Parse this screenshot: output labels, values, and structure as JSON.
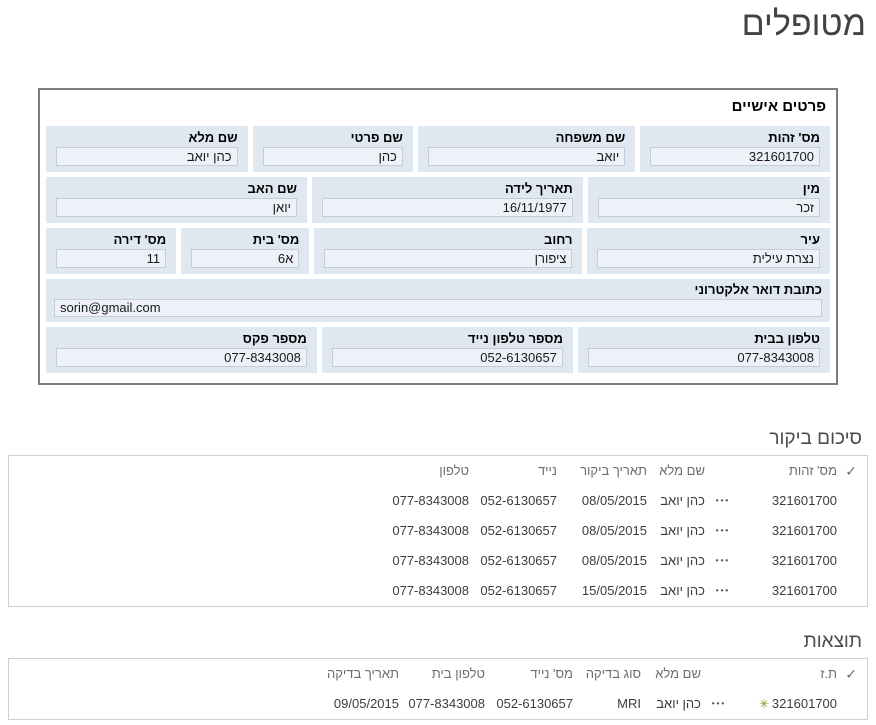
{
  "page": {
    "title": "מטופלים"
  },
  "icons": {
    "select_all": "✓",
    "ellipsis_menu": "•••",
    "new_item": "✳"
  },
  "colors": {
    "field_band": "#dfe8f1",
    "input_background": "#eef2f8",
    "input_border": "#c5ccd6",
    "form_border": "#7d7d7d",
    "table_border": "#cfcfcf",
    "new_item_green": "#72a126"
  },
  "form": {
    "title": "פרטים אישיים",
    "fields": {
      "id_number": {
        "label": "מס' זהות",
        "value": "321601700"
      },
      "family_name": {
        "label": "שם משפחה",
        "value": "יואב"
      },
      "first_name": {
        "label": "שם פרטי",
        "value": "כהן"
      },
      "full_name": {
        "label": "שם מלא",
        "value": "כהן יואב"
      },
      "gender": {
        "label": "מין",
        "value": "זכר"
      },
      "birth_date": {
        "label": "תאריך לידה",
        "value": "16/11/1977"
      },
      "father_name": {
        "label": "שם האב",
        "value": "יואן"
      },
      "city": {
        "label": "עיר",
        "value": "נצרת עילית"
      },
      "street": {
        "label": "רחוב",
        "value": "ציפורן"
      },
      "house_number": {
        "label": "מס' בית",
        "value": "6א"
      },
      "apartment_number": {
        "label": "מס' דירה",
        "value": "11"
      },
      "email": {
        "label": "כתובת דואר אלקטרוני",
        "value": "sorin@gmail.com"
      },
      "home_phone": {
        "label": "טלפון בבית",
        "value": "077-8343008"
      },
      "mobile_phone": {
        "label": "מספר טלפון נייד",
        "value": "052-6130657"
      },
      "fax": {
        "label": "מספר פקס",
        "value": "077-8343008"
      }
    }
  },
  "visit_summary": {
    "title": "סיכום ביקור",
    "columns": {
      "id": "מס' זהות",
      "full_name": "שם מלא",
      "visit_date": "תאריך ביקור",
      "mobile": "נייד",
      "phone": "טלפון"
    },
    "rows": [
      {
        "id": "321601700",
        "full_name": "כהן יואב",
        "visit_date": "08/05/2015",
        "mobile": "052-6130657",
        "phone": "077-8343008"
      },
      {
        "id": "321601700",
        "full_name": "כהן יואב",
        "visit_date": "08/05/2015",
        "mobile": "052-6130657",
        "phone": "077-8343008"
      },
      {
        "id": "321601700",
        "full_name": "כהן יואב",
        "visit_date": "08/05/2015",
        "mobile": "052-6130657",
        "phone": "077-8343008"
      },
      {
        "id": "321601700",
        "full_name": "כהן יואב",
        "visit_date": "15/05/2015",
        "mobile": "052-6130657",
        "phone": "077-8343008"
      }
    ]
  },
  "results": {
    "title": "תוצאות",
    "columns": {
      "id": "ת.ז",
      "full_name": "שם מלא",
      "test_type": "סוג בדיקה",
      "mobile": "מס' נייד",
      "home_phone": "טלפון בית",
      "test_date": "תאריך בדיקה"
    },
    "rows": [
      {
        "id": "321601700",
        "full_name": "כהן יואב",
        "test_type": "MRI",
        "mobile": "052-6130657",
        "home_phone": "077-8343008",
        "test_date": "09/05/2015"
      }
    ]
  }
}
